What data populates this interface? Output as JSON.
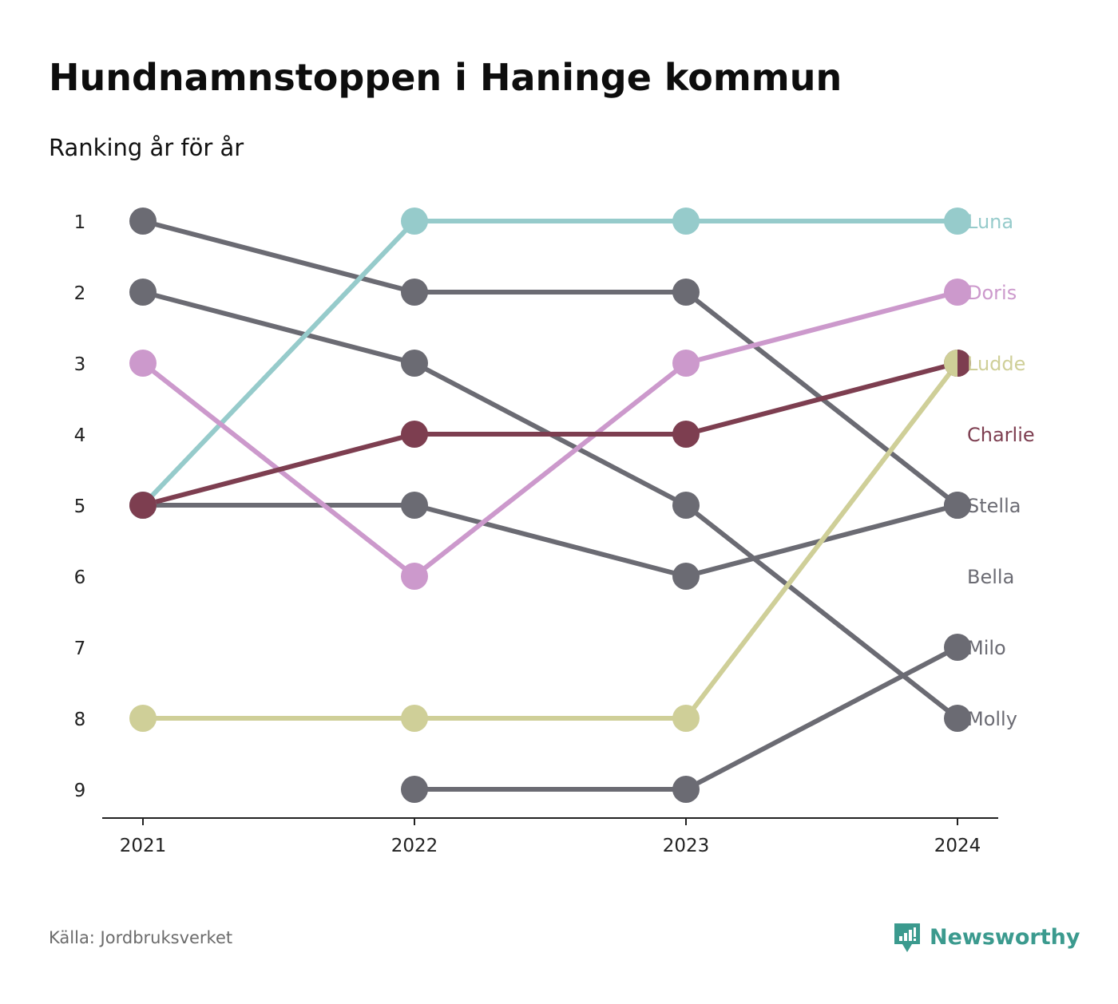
{
  "header": {
    "title": "Hundnamnstoppen i Haninge kommun",
    "subtitle": "Ranking år för år"
  },
  "footer": {
    "source": "Källa: Jordbruksverket",
    "brand": "Newsworthy",
    "brand_icon": "newsworthy-logo-icon",
    "brand_color": "#3b9a8e"
  },
  "chart_data": {
    "type": "line",
    "x": [
      "2021",
      "2022",
      "2023",
      "2024"
    ],
    "y_ticks": [
      "1",
      "2",
      "3",
      "4",
      "5",
      "6",
      "7",
      "8",
      "9"
    ],
    "ylim": [
      1,
      9
    ],
    "y_reversed": true,
    "grid": false,
    "legend": "labels at line ends, right",
    "series": [
      {
        "name": "Luna",
        "color": "#96cbcb",
        "values": [
          5,
          1,
          1,
          1
        ]
      },
      {
        "name": "Doris",
        "color": "#cc99cc",
        "values": [
          3,
          6,
          3,
          2
        ]
      },
      {
        "name": "Ludde",
        "color": "#cfcf98",
        "values": [
          8,
          8,
          8,
          3
        ]
      },
      {
        "name": "Charlie",
        "color": "#7d3e50",
        "values": [
          5,
          4,
          4,
          3
        ]
      },
      {
        "name": "Stella",
        "color": "#6b6b73",
        "values": [
          1,
          2,
          2,
          5
        ]
      },
      {
        "name": "Bella",
        "color": "#6b6b73",
        "values": [
          5,
          5,
          6,
          5
        ]
      },
      {
        "name": "Milo",
        "color": "#6b6b73",
        "values": [
          null,
          9,
          9,
          7
        ]
      },
      {
        "name": "Molly",
        "color": "#6b6b73",
        "values": [
          2,
          3,
          5,
          8
        ]
      }
    ]
  }
}
